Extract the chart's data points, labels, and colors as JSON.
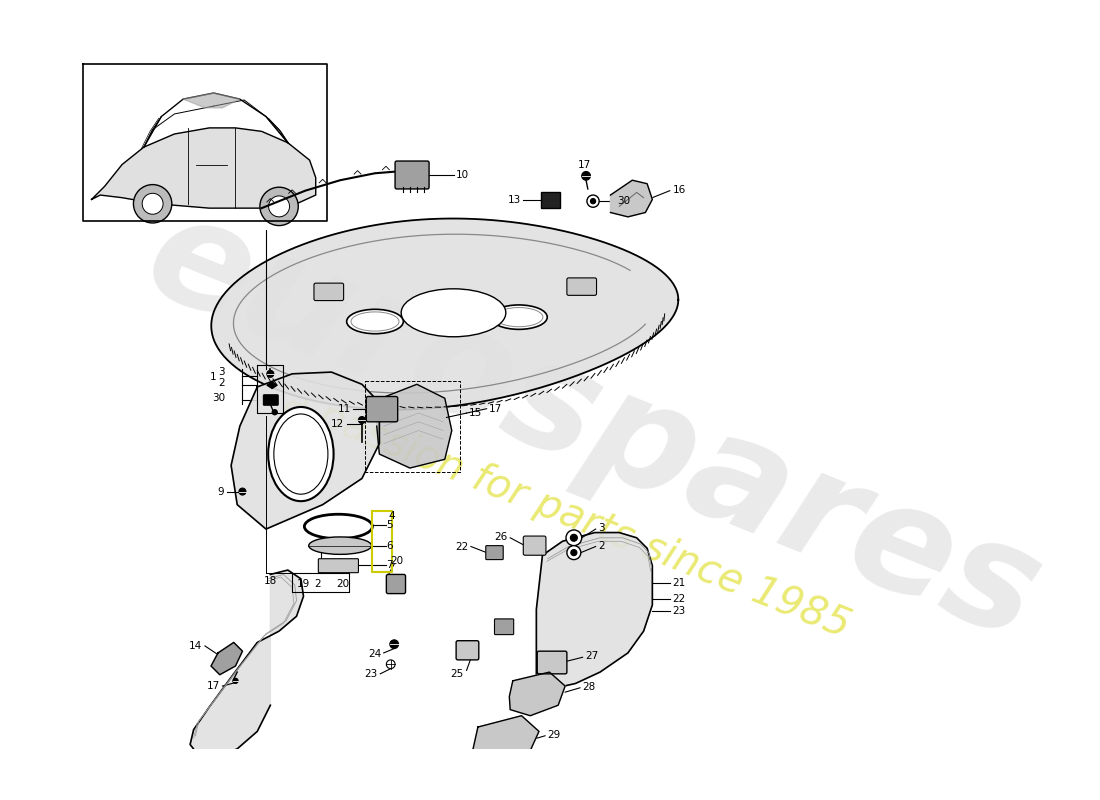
{
  "background_color": "#ffffff",
  "watermark_main": "eurospares",
  "watermark_sub": "a passion for parts since 1985",
  "figsize": [
    11.0,
    8.0
  ],
  "dpi": 100,
  "gray_fill": "#e0e0e0",
  "gray_mid": "#c8c8c8",
  "gray_dark": "#a0a0a0",
  "line_color": "#000000",
  "label_fs": 7.5,
  "label_fs_sm": 7.0
}
